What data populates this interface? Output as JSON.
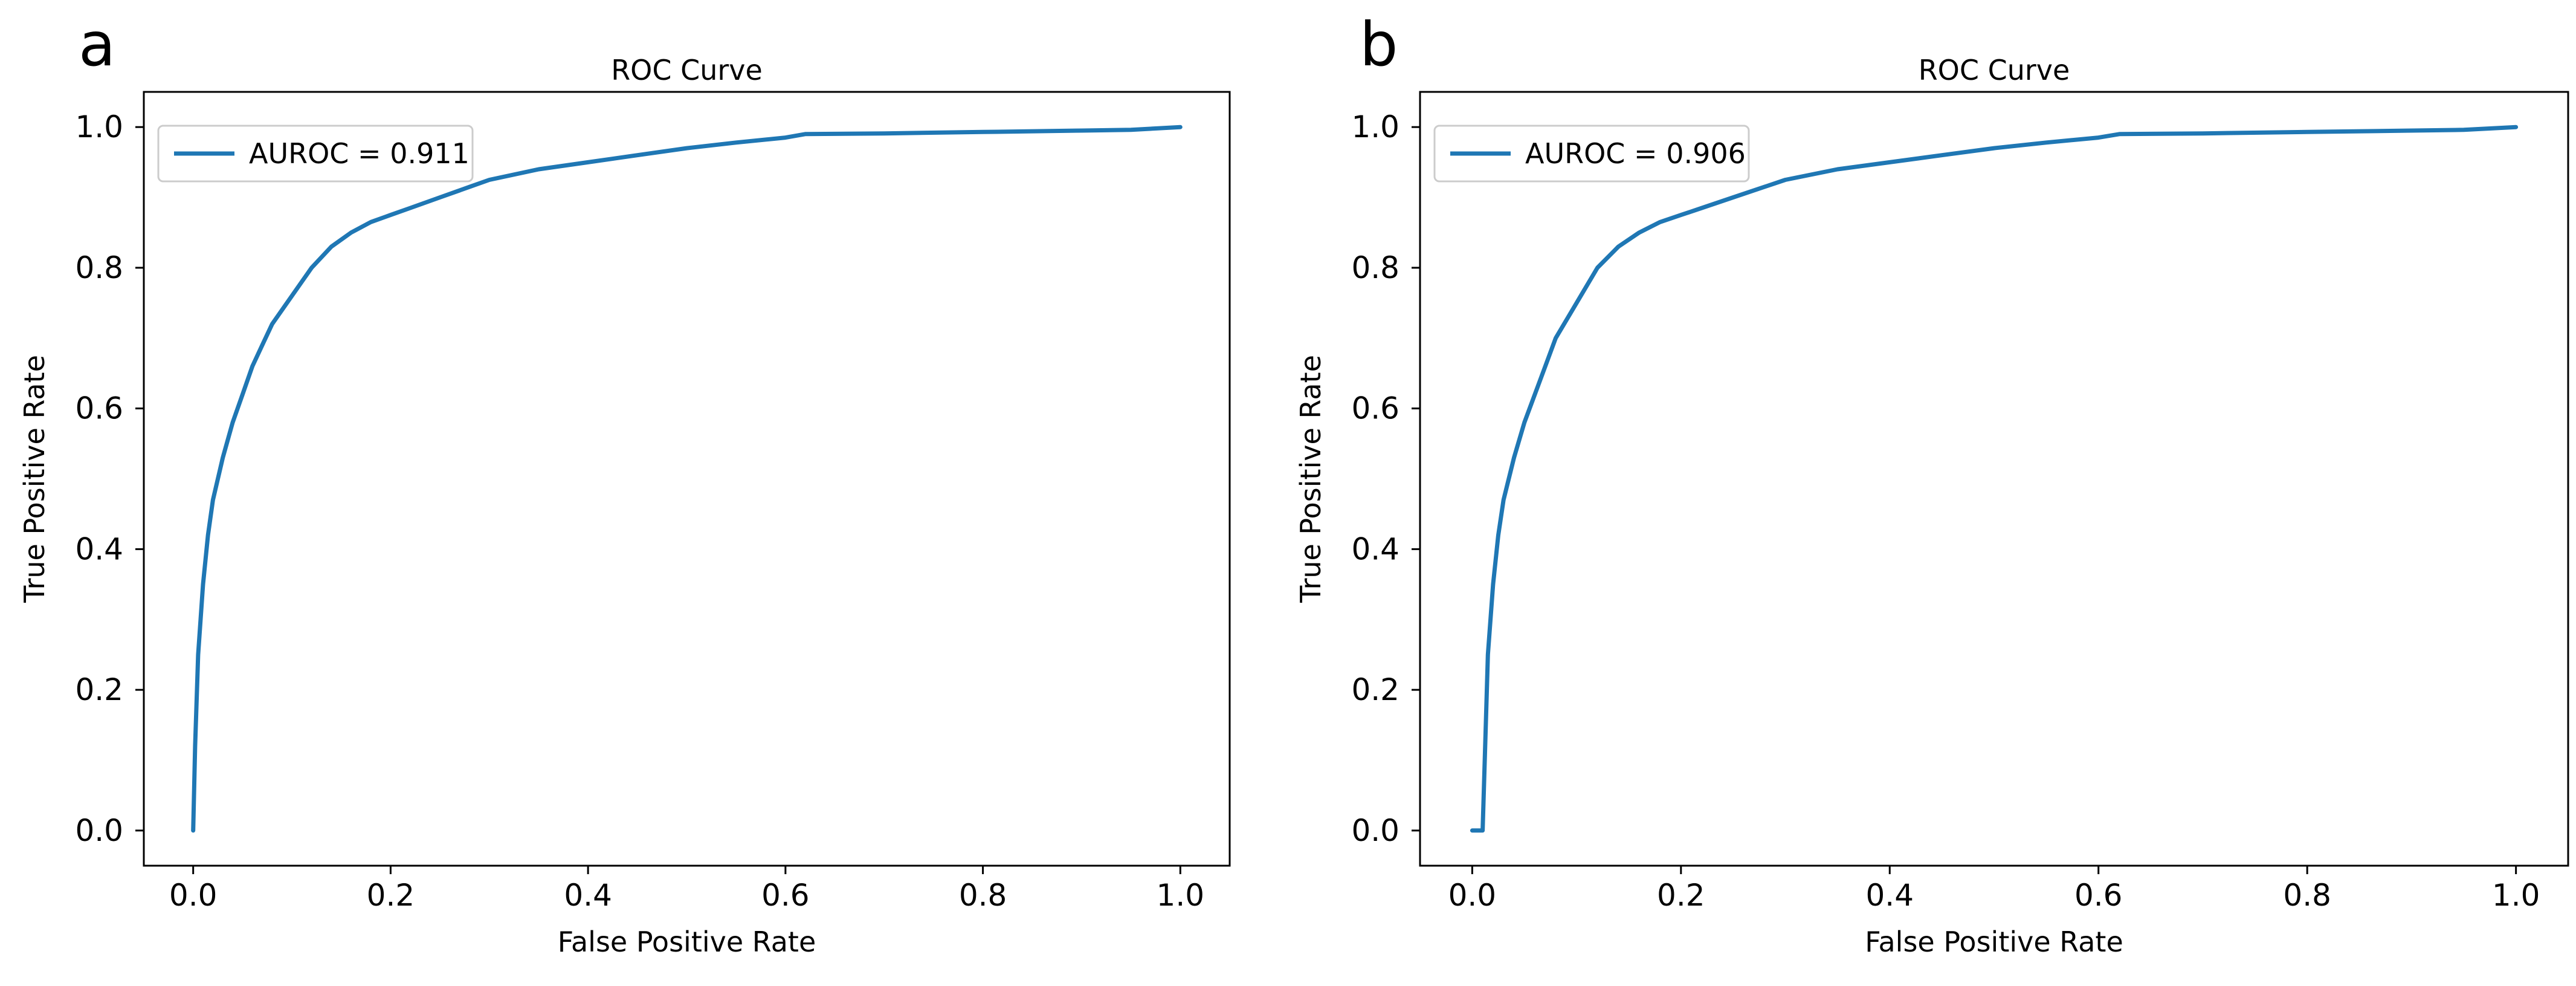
{
  "chart_data": [
    {
      "panel_label": "a",
      "type": "line",
      "title": "ROC Curve",
      "xlabel": "False Positive Rate",
      "ylabel": "True Positive Rate",
      "xlim": [
        -0.05,
        1.05
      ],
      "ylim": [
        -0.05,
        1.05
      ],
      "xticks": [
        0.0,
        0.2,
        0.4,
        0.6,
        0.8,
        1.0
      ],
      "xtick_labels": [
        "0.0",
        "0.2",
        "0.4",
        "0.6",
        "0.8",
        "1.0"
      ],
      "yticks": [
        0.0,
        0.2,
        0.4,
        0.6,
        0.8,
        1.0
      ],
      "ytick_labels": [
        "0.0",
        "0.2",
        "0.4",
        "0.6",
        "0.8",
        "1.0"
      ],
      "legend_position": "top-left",
      "series": [
        {
          "name": "AUROC = 0.911",
          "color": "#1f77b4",
          "x": [
            0.0,
            0.002,
            0.005,
            0.01,
            0.015,
            0.02,
            0.03,
            0.04,
            0.05,
            0.06,
            0.07,
            0.08,
            0.1,
            0.12,
            0.14,
            0.16,
            0.18,
            0.2,
            0.22,
            0.25,
            0.28,
            0.3,
            0.35,
            0.4,
            0.45,
            0.5,
            0.55,
            0.6,
            0.62,
            0.7,
            0.8,
            0.9,
            0.95,
            1.0
          ],
          "y": [
            0.0,
            0.12,
            0.25,
            0.35,
            0.42,
            0.47,
            0.53,
            0.58,
            0.62,
            0.66,
            0.69,
            0.72,
            0.76,
            0.8,
            0.83,
            0.85,
            0.865,
            0.875,
            0.885,
            0.9,
            0.915,
            0.925,
            0.94,
            0.95,
            0.96,
            0.97,
            0.978,
            0.985,
            0.99,
            0.991,
            0.993,
            0.995,
            0.996,
            1.0
          ]
        }
      ]
    },
    {
      "panel_label": "b",
      "type": "line",
      "title": "ROC Curve",
      "xlabel": "False Positive Rate",
      "ylabel": "True Positive Rate",
      "xlim": [
        -0.05,
        1.05
      ],
      "ylim": [
        -0.05,
        1.05
      ],
      "xticks": [
        0.0,
        0.2,
        0.4,
        0.6,
        0.8,
        1.0
      ],
      "xtick_labels": [
        "0.0",
        "0.2",
        "0.4",
        "0.6",
        "0.8",
        "1.0"
      ],
      "yticks": [
        0.0,
        0.2,
        0.4,
        0.6,
        0.8,
        1.0
      ],
      "ytick_labels": [
        "0.0",
        "0.2",
        "0.4",
        "0.6",
        "0.8",
        "1.0"
      ],
      "legend_position": "top-left",
      "series": [
        {
          "name": "AUROC = 0.906",
          "color": "#1f77b4",
          "x": [
            0.0,
            0.01,
            0.012,
            0.015,
            0.02,
            0.025,
            0.03,
            0.04,
            0.05,
            0.06,
            0.07,
            0.08,
            0.1,
            0.12,
            0.14,
            0.16,
            0.18,
            0.2,
            0.22,
            0.25,
            0.28,
            0.3,
            0.35,
            0.4,
            0.45,
            0.5,
            0.55,
            0.6,
            0.62,
            0.7,
            0.8,
            0.9,
            0.95,
            1.0
          ],
          "y": [
            0.0,
            0.0,
            0.1,
            0.25,
            0.35,
            0.42,
            0.47,
            0.53,
            0.58,
            0.62,
            0.66,
            0.7,
            0.75,
            0.8,
            0.83,
            0.85,
            0.865,
            0.875,
            0.885,
            0.9,
            0.915,
            0.925,
            0.94,
            0.95,
            0.96,
            0.97,
            0.978,
            0.985,
            0.99,
            0.991,
            0.993,
            0.995,
            0.996,
            1.0
          ]
        }
      ]
    }
  ]
}
